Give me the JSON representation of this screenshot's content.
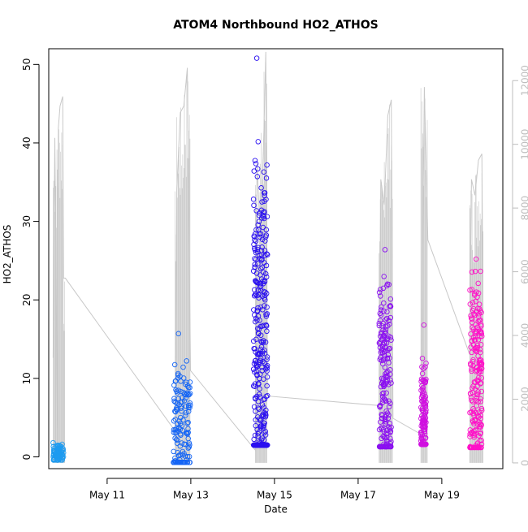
{
  "chart_data": {
    "type": "scatter",
    "title": "ATOM4 Northbound HO2_ATHOS",
    "xlabel": "Date",
    "ylabel": "HO2_ATHOS",
    "x_unit": "date",
    "xlim": [
      "2016-05-09T14:30",
      "2016-05-20T11:00"
    ],
    "ylim": [
      -1.5,
      52
    ],
    "x_ticks": [
      {
        "date": "2016-05-11",
        "label": "May 11"
      },
      {
        "date": "2016-05-13",
        "label": "May 13"
      },
      {
        "date": "2016-05-15",
        "label": "May 15"
      },
      {
        "date": "2016-05-17",
        "label": "May 17"
      },
      {
        "date": "2016-05-19",
        "label": "May 19"
      }
    ],
    "y_ticks": [
      0,
      10,
      20,
      30,
      40,
      50
    ],
    "secondary_y": {
      "ylim": [
        -180,
        13000
      ],
      "ticks": [
        0,
        2000,
        4000,
        6000,
        8000,
        10000,
        12000
      ],
      "color": "#bdbdbd"
    },
    "grid": false,
    "legend": "none",
    "marker": "open-circle",
    "series": [
      {
        "color": "#1e9bf0",
        "clusters": [
          {
            "start": "2016-05-09T17:00",
            "end": "2016-05-09T23:10",
            "min": -0.4,
            "max": 1.8,
            "center": 0.4
          }
        ]
      },
      {
        "color": "#1565f5",
        "clusters": [
          {
            "start": "2016-05-12T14:00",
            "end": "2016-05-12T23:50",
            "min": -0.7,
            "max": 15.7,
            "center": 3.5
          }
        ]
      },
      {
        "color": "#2a10f0",
        "clusters": [
          {
            "start": "2016-05-14T12:00",
            "end": "2016-05-14T20:00",
            "min": 1.5,
            "max": 50.8,
            "center": 12
          }
        ]
      },
      {
        "color": "#8a10f0",
        "clusters": [
          {
            "start": "2016-05-17T12:00",
            "end": "2016-05-17T19:00",
            "min": 1.3,
            "max": 26.4,
            "center": 9
          }
        ]
      },
      {
        "color": "#d010e0",
        "clusters": [
          {
            "start": "2016-05-18T12:00",
            "end": "2016-05-18T15:00",
            "min": 1.6,
            "max": 16.8,
            "center": 4
          }
        ]
      },
      {
        "color": "#ff10c8",
        "clusters": [
          {
            "start": "2016-05-19T16:00",
            "end": "2016-05-19T23:00",
            "min": 1.2,
            "max": 25.2,
            "center": 10
          }
        ]
      }
    ],
    "secondary_line": {
      "color": "#c8c8c8",
      "points": [
        [
          "2016-05-09T17:00",
          3300
        ],
        [
          "2016-05-09T18:00",
          10200
        ],
        [
          "2016-05-09T19:30",
          1100
        ],
        [
          "2016-05-09T20:00",
          10500
        ],
        [
          "2016-05-09T21:00",
          11200
        ],
        [
          "2016-05-09T22:30",
          11500
        ],
        [
          "2016-05-09T23:00",
          5800
        ],
        [
          "2016-05-10T00:00",
          5800
        ],
        [
          "2016-05-12T15:00",
          1000
        ],
        [
          "2016-05-12T16:00",
          8600
        ],
        [
          "2016-05-12T18:00",
          11000
        ],
        [
          "2016-05-12T20:00",
          11200
        ],
        [
          "2016-05-12T22:00",
          12400
        ],
        [
          "2016-05-12T23:50",
          2900
        ],
        [
          "2016-05-14T13:00",
          400
        ],
        [
          "2016-05-14T14:00",
          9400
        ],
        [
          "2016-05-14T16:00",
          7000
        ],
        [
          "2016-05-14T18:00",
          10500
        ],
        [
          "2016-05-14T19:00",
          12900
        ],
        [
          "2016-05-14T20:00",
          2100
        ],
        [
          "2016-05-17T12:00",
          1800
        ],
        [
          "2016-05-17T13:00",
          8900
        ],
        [
          "2016-05-17T15:00",
          8100
        ],
        [
          "2016-05-17T17:00",
          10900
        ],
        [
          "2016-05-17T19:00",
          11400
        ],
        [
          "2016-05-17T20:00",
          1400
        ],
        [
          "2016-05-18T12:00",
          900
        ],
        [
          "2016-05-18T14:00",
          11800
        ],
        [
          "2016-05-18T16:00",
          7000
        ],
        [
          "2016-05-19T16:00",
          3400
        ],
        [
          "2016-05-19T17:00",
          8900
        ],
        [
          "2016-05-19T19:00",
          8400
        ],
        [
          "2016-05-19T21:00",
          9500
        ],
        [
          "2016-05-19T23:00",
          9700
        ],
        [
          "2016-05-20T00:00",
          2000
        ]
      ]
    }
  }
}
